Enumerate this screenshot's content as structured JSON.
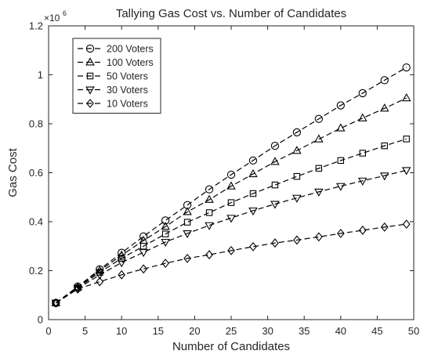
{
  "chart_data": {
    "type": "line",
    "title": "Tallying Gas Cost vs. Number of Candidates",
    "xlabel": "Number of Candidates",
    "ylabel": "Gas Cost",
    "y_multiplier_label": "×10",
    "y_multiplier_exp": "6",
    "xlim": [
      0,
      50
    ],
    "ylim": [
      0,
      1.2
    ],
    "x_ticks": [
      0,
      5,
      10,
      15,
      20,
      25,
      30,
      35,
      40,
      45,
      50
    ],
    "y_ticks": [
      0,
      0.2,
      0.4,
      0.6,
      0.8,
      1,
      1.2
    ],
    "y_tick_labels": [
      "0",
      "0.2",
      "0.4",
      "0.6",
      "0.8",
      "1",
      "1.2"
    ],
    "grid": false,
    "legend_position": "top-left",
    "line_style": "dashed",
    "color": "#000000",
    "x": [
      1,
      4,
      7,
      10,
      13,
      16,
      19,
      22,
      25,
      28,
      31,
      34,
      37,
      40,
      43,
      46,
      49
    ],
    "series": [
      {
        "name": "200 Voters",
        "marker": "circle",
        "values": [
          0.068,
          0.135,
          0.205,
          0.273,
          0.34,
          0.405,
          0.468,
          0.532,
          0.592,
          0.65,
          0.71,
          0.765,
          0.82,
          0.875,
          0.925,
          0.978,
          1.03
        ]
      },
      {
        "name": "100 Voters",
        "marker": "triangle-up",
        "values": [
          0.068,
          0.133,
          0.2,
          0.263,
          0.323,
          0.38,
          0.44,
          0.49,
          0.545,
          0.595,
          0.645,
          0.69,
          0.737,
          0.782,
          0.823,
          0.863,
          0.905
        ]
      },
      {
        "name": "50 Voters",
        "marker": "square",
        "values": [
          0.068,
          0.13,
          0.193,
          0.25,
          0.3,
          0.35,
          0.398,
          0.437,
          0.478,
          0.515,
          0.55,
          0.585,
          0.618,
          0.65,
          0.68,
          0.71,
          0.738
        ]
      },
      {
        "name": "30 Voters",
        "marker": "triangle-down",
        "values": [
          0.068,
          0.126,
          0.183,
          0.233,
          0.275,
          0.317,
          0.352,
          0.385,
          0.415,
          0.445,
          0.472,
          0.497,
          0.522,
          0.545,
          0.567,
          0.588,
          0.61
        ]
      },
      {
        "name": "10 Voters",
        "marker": "diamond",
        "values": [
          0.068,
          0.125,
          0.155,
          0.183,
          0.207,
          0.23,
          0.25,
          0.265,
          0.282,
          0.298,
          0.313,
          0.325,
          0.338,
          0.352,
          0.365,
          0.378,
          0.39
        ]
      }
    ]
  }
}
